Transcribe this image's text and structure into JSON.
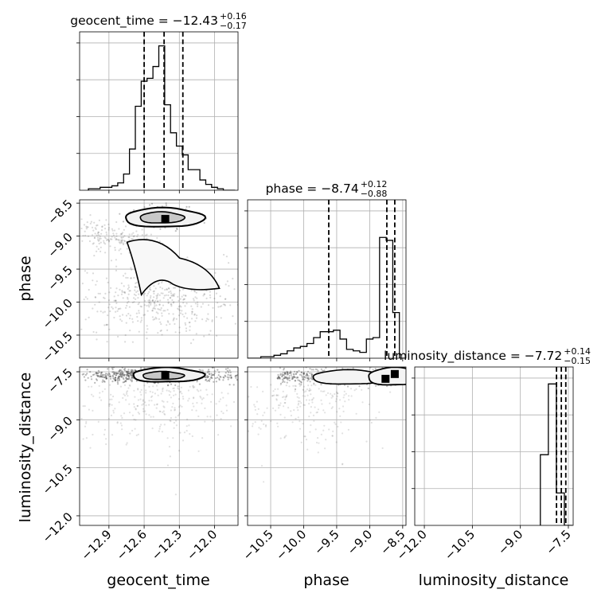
{
  "chart_data": {
    "type": "corner",
    "parameters": [
      "geocent_time",
      "phase",
      "luminosity_distance"
    ],
    "axis_labels": {
      "geocent_time": "geocent_time",
      "phase": "phase",
      "luminosity_distance": "luminosity_distance"
    },
    "titles": [
      {
        "param": "geocent_time",
        "prefix": "geocent_time = −12.43",
        "plus": "+0.16",
        "minus": "−0.17",
        "median": -12.43,
        "err_plus": 0.16,
        "err_minus": 0.17
      },
      {
        "param": "phase",
        "prefix": "phase = −8.74",
        "plus": "+0.12",
        "minus": "−0.88",
        "median": -8.74,
        "err_plus": 0.12,
        "err_minus": 0.88
      },
      {
        "param": "luminosity_distance",
        "prefix": "luminosity_distance = −7.72",
        "plus": "+0.14",
        "minus": "−0.15",
        "median": -7.72,
        "err_plus": 0.14,
        "err_minus": 0.15
      }
    ],
    "ranges": {
      "geocent_time": [
        -13.15,
        -11.8
      ],
      "phase": [
        -10.85,
        -8.45
      ],
      "luminosity_distance": [
        -12.3,
        -7.35
      ]
    },
    "ticks": {
      "geocent_time": {
        "values": [
          -12.9,
          -12.6,
          -12.3,
          -12.0
        ],
        "labels": [
          "−12.9",
          "−12.6",
          "−12.3",
          "−12.0"
        ]
      },
      "phase": {
        "values": [
          -10.5,
          -10.0,
          -9.5,
          -9.0,
          -8.5
        ],
        "labels": [
          "−10.5",
          "−10.0",
          "−9.5",
          "−9.0",
          "−8.5"
        ]
      },
      "luminosity_distance": {
        "values": [
          -12.0,
          -10.5,
          -9.0,
          -7.5
        ],
        "labels": [
          "−12.0",
          "−10.5",
          "−9.0",
          "−7.5"
        ]
      }
    },
    "histograms": {
      "geocent_time": {
        "x": [
          -13.05,
          -13.0,
          -12.95,
          -12.9,
          -12.85,
          -12.8,
          -12.75,
          -12.7,
          -12.65,
          -12.6,
          -12.55,
          -12.5,
          -12.45,
          -12.4,
          -12.35,
          -12.3,
          -12.25,
          -12.2,
          -12.15,
          -12.1,
          -12.05,
          -12.0,
          -11.95,
          -11.9,
          -11.85
        ],
        "values": [
          0.01,
          0.01,
          0.02,
          0.02,
          0.03,
          0.05,
          0.11,
          0.28,
          0.57,
          0.74,
          0.76,
          0.84,
          0.98,
          0.58,
          0.39,
          0.3,
          0.24,
          0.14,
          0.14,
          0.07,
          0.04,
          0.02,
          0.01,
          0.0,
          0.0
        ]
      },
      "phase": {
        "x": [
          -10.8,
          -10.7,
          -10.6,
          -10.5,
          -10.4,
          -10.3,
          -10.2,
          -10.1,
          -10.0,
          -9.9,
          -9.8,
          -9.7,
          -9.6,
          -9.5,
          -9.4,
          -9.3,
          -9.2,
          -9.1,
          -9.0,
          -8.9,
          -8.8,
          -8.7,
          -8.6,
          -8.5
        ],
        "values": [
          0.0,
          0.0,
          0.01,
          0.01,
          0.02,
          0.03,
          0.05,
          0.07,
          0.08,
          0.1,
          0.14,
          0.18,
          0.18,
          0.19,
          0.13,
          0.06,
          0.05,
          0.04,
          0.13,
          0.14,
          0.82,
          0.8,
          0.31,
          0.0
        ]
      },
      "luminosity_distance": {
        "x": [
          -8.25,
          -8.0,
          -7.75,
          -7.5
        ],
        "values": [
          0.48,
          0.96,
          0.22,
          0.0
        ]
      }
    },
    "quantile_lines": {
      "geocent_time": [
        -12.6,
        -12.43,
        -12.27
      ],
      "phase": [
        -9.62,
        -8.74,
        -8.62
      ],
      "luminosity_distance": [
        -7.87,
        -7.72,
        -7.58
      ]
    },
    "contour_pairs": [
      {
        "x": "geocent_time",
        "y": "phase",
        "best_fit": {
          "x": -12.42,
          "y": -8.74
        }
      },
      {
        "x": "geocent_time",
        "y": "luminosity_distance",
        "best_fit": {
          "x": -12.42,
          "y": -7.6
        }
      },
      {
        "x": "phase",
        "y": "luminosity_distance",
        "best_fit": [
          {
            "x": -8.62,
            "y": -7.57
          },
          {
            "x": -8.76,
            "y": -7.72
          }
        ]
      }
    ],
    "grid": true
  }
}
